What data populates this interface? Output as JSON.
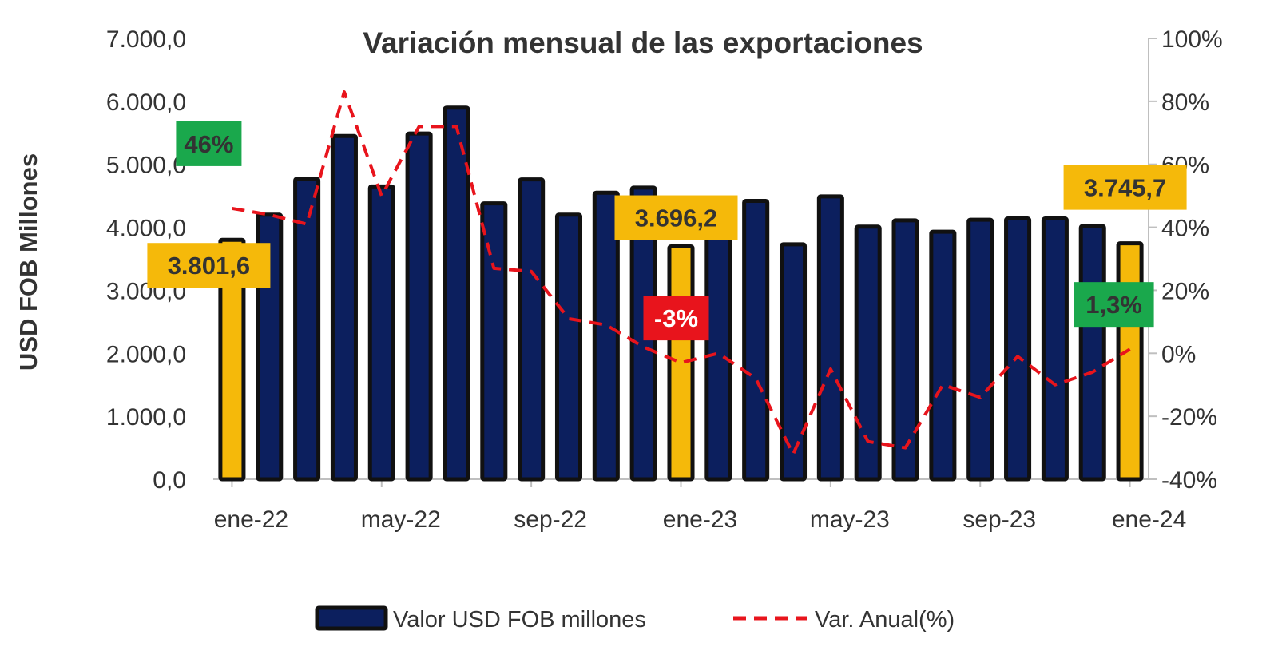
{
  "chart_data": {
    "type": "bar",
    "title": "Variación mensual de las exportaciones",
    "ylabel": "USD FOB Millones",
    "y2label": "",
    "ylim": [
      0,
      7000
    ],
    "y2lim": [
      -40,
      100
    ],
    "y_ticks": [
      "0,0",
      "1.000,0",
      "2.000,0",
      "3.000,0",
      "4.000,0",
      "5.000,0",
      "6.000,0",
      "7.000,0"
    ],
    "y2_ticks": [
      "-40%",
      "-20%",
      "0%",
      "20%",
      "40%",
      "60%",
      "80%",
      "100%"
    ],
    "x_tick_labels": [
      {
        "index": 0,
        "label": "ene-22"
      },
      {
        "index": 4,
        "label": "may-22"
      },
      {
        "index": 8,
        "label": "sep-22"
      },
      {
        "index": 12,
        "label": "ene-23"
      },
      {
        "index": 16,
        "label": "may-23"
      },
      {
        "index": 20,
        "label": "sep-23"
      },
      {
        "index": 24,
        "label": "ene-24"
      }
    ],
    "categories": [
      "ene-22",
      "feb-22",
      "mar-22",
      "abr-22",
      "may-22",
      "jun-22",
      "jul-22",
      "ago-22",
      "sep-22",
      "oct-22",
      "nov-22",
      "dic-22",
      "ene-23",
      "feb-23",
      "mar-23",
      "abr-23",
      "may-23",
      "jun-23",
      "jul-23",
      "ago-23",
      "sep-23",
      "oct-23",
      "nov-23",
      "dic-23",
      "ene-24"
    ],
    "series": [
      {
        "name": "Valor USD FOB millones",
        "type": "bar",
        "color": "#0c1f5e",
        "highlight_color": "#f5b90a",
        "highlight_indices": [
          0,
          12,
          24
        ],
        "values": [
          3801.6,
          4200,
          4770,
          5450,
          4650,
          5490,
          5900,
          4380,
          4760,
          4200,
          4550,
          4630,
          3696.2,
          3960,
          4420,
          3730,
          4490,
          4010,
          4110,
          3930,
          4120,
          4140,
          4140,
          4020,
          3745.7
        ]
      },
      {
        "name": "Var. Anual(%)",
        "type": "line",
        "axis": "right",
        "color": "#e8141c",
        "dash": "dashed",
        "values": [
          46,
          44,
          41,
          83,
          50,
          72,
          72,
          27,
          26,
          11,
          9,
          2,
          -3,
          0,
          -8,
          -32,
          -5,
          -28,
          -30,
          -10,
          -14,
          -1,
          -10,
          -6,
          1.3
        ]
      }
    ],
    "callouts": [
      {
        "text": "46%",
        "bg": "#1aa84c",
        "fg": "#333333",
        "index": 0,
        "series": 1
      },
      {
        "text": "3.801,6",
        "bg": "#f5b90a",
        "fg": "#333333",
        "index": 0,
        "series": 0
      },
      {
        "text": "3.696,2",
        "bg": "#f5b90a",
        "fg": "#333333",
        "index": 12,
        "series": 0
      },
      {
        "text": "-3%",
        "bg": "#e8141c",
        "fg": "#ffffff",
        "index": 12,
        "series": 1
      },
      {
        "text": "3.745,7",
        "bg": "#f5b90a",
        "fg": "#333333",
        "index": 24,
        "series": 0
      },
      {
        "text": "1,3%",
        "bg": "#1aa84c",
        "fg": "#333333",
        "index": 24,
        "series": 1
      }
    ],
    "legend": {
      "position": "bottom",
      "items": [
        {
          "label": "Valor USD FOB millones",
          "kind": "bar"
        },
        {
          "label": "Var. Anual(%)",
          "kind": "dashed-line"
        }
      ]
    },
    "grid": false
  }
}
